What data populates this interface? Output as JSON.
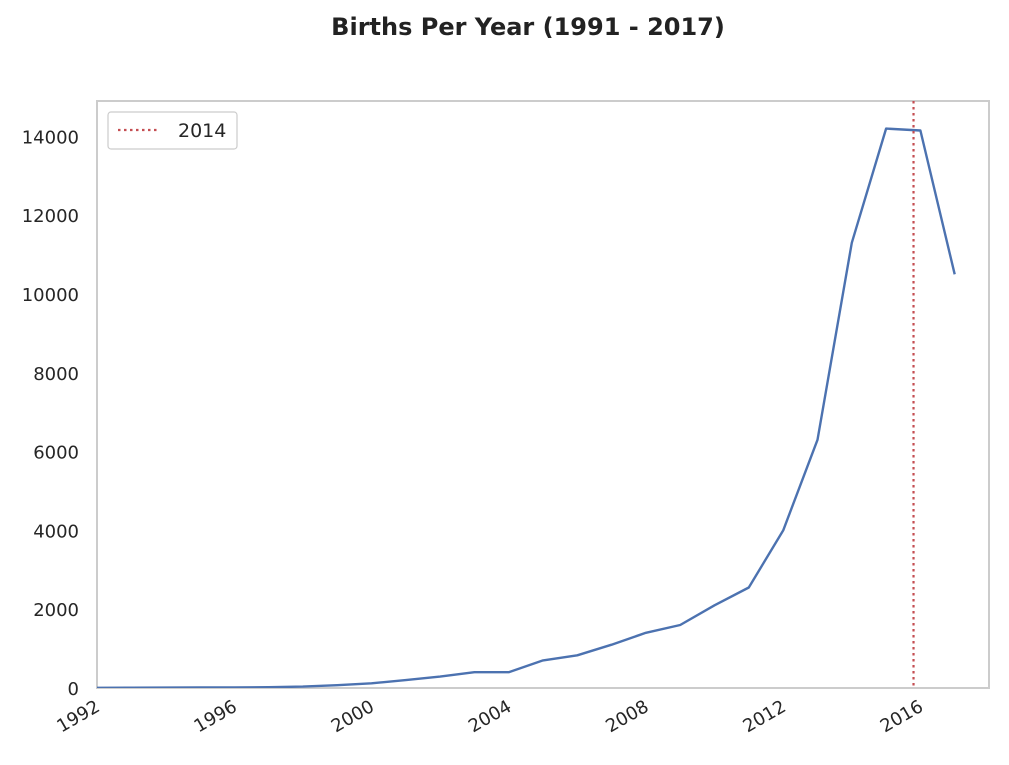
{
  "chart_data": {
    "type": "line",
    "title": "Births Per Year (1991 - 2017)",
    "xlabel": "",
    "ylabel": "",
    "x": [
      1991,
      1992,
      1993,
      1994,
      1995,
      1996,
      1997,
      1998,
      1999,
      2000,
      2001,
      2002,
      2003,
      2004,
      2005,
      2006,
      2007,
      2008,
      2009,
      2010,
      2011,
      2012,
      2013,
      2014,
      2015,
      2016,
      2017
    ],
    "series": [
      {
        "name": "",
        "color": "#4c72b0",
        "values": [
          5,
          5,
          8,
          10,
          12,
          15,
          20,
          35,
          70,
          120,
          200,
          290,
          400,
          400,
          700,
          830,
          1100,
          1400,
          1600,
          2100,
          2550,
          4000,
          6300,
          11300,
          14200,
          14150,
          10500
        ]
      }
    ],
    "x_tick_labels": [
      "1992",
      "1996",
      "2000",
      "2004",
      "2008",
      "2012",
      "2016"
    ],
    "x_ticks": [
      1992,
      1996,
      2000,
      2004,
      2008,
      2012,
      2016
    ],
    "y_ticks": [
      0,
      2000,
      4000,
      6000,
      8000,
      10000,
      12000,
      14000
    ],
    "y_tick_labels": [
      "0",
      "2000",
      "4000",
      "6000",
      "8000",
      "10000",
      "12000",
      "14000"
    ],
    "xlim": [
      1992,
      2018
    ],
    "ylim": [
      0,
      14900
    ],
    "grid": false,
    "vline": {
      "x": 2015.8,
      "label": "2014",
      "color": "#c44e52",
      "style": "dotted"
    },
    "legend": {
      "position": "top-left",
      "entries": [
        "2014"
      ]
    }
  }
}
